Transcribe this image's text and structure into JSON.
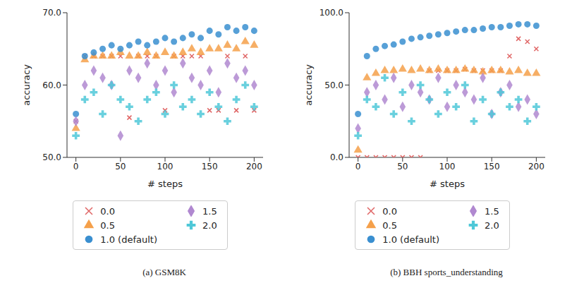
{
  "chart_data": [
    {
      "type": "scatter",
      "title": "(a) GSM8K",
      "xlabel": "# steps",
      "ylabel": "accuracy",
      "x": [
        0,
        10,
        20,
        30,
        40,
        50,
        60,
        70,
        80,
        90,
        100,
        110,
        120,
        130,
        140,
        150,
        160,
        170,
        180,
        190,
        200
      ],
      "xlim": [
        -10,
        210
      ],
      "xticks": [
        0,
        50,
        100,
        150,
        200
      ],
      "ylim": [
        50,
        70
      ],
      "yticks": [
        {
          "value": 50,
          "label": "50.0"
        },
        {
          "value": 60,
          "label": "60.0"
        },
        {
          "value": 70,
          "label": "70.0"
        }
      ],
      "series": [
        {
          "name": "0.0",
          "color": "#e06666",
          "marker": "x",
          "values": [
            55,
            64,
            64,
            64,
            64,
            64,
            55.5,
            64,
            64,
            64,
            56.5,
            64,
            64,
            64,
            64,
            56.5,
            56.5,
            64,
            56.5,
            64,
            56.5
          ]
        },
        {
          "name": "0.5",
          "color": "#f5a04a",
          "marker": "triangle",
          "values": [
            54,
            63.5,
            64,
            64,
            64,
            64.5,
            64,
            64,
            64.5,
            64,
            64.5,
            64,
            64.5,
            65,
            64.5,
            65,
            65,
            65.5,
            65,
            66,
            65.5
          ]
        },
        {
          "name": "1.0 (default)",
          "color": "#3a8fd0",
          "marker": "circle",
          "values": [
            56,
            64,
            64.5,
            65,
            65.5,
            65,
            65.5,
            66,
            65.5,
            66,
            66.5,
            66,
            66.5,
            67,
            66.5,
            67.5,
            67,
            68,
            67.5,
            68,
            67.5
          ]
        },
        {
          "name": "1.5",
          "color": "#b088d0",
          "marker": "diamond",
          "values": [
            55,
            60,
            62,
            61,
            60,
            53,
            62,
            61,
            63,
            60,
            62,
            59,
            63,
            61,
            60,
            62,
            59,
            63,
            61,
            62,
            60
          ]
        },
        {
          "name": "2.0",
          "color": "#4fc8d8",
          "marker": "plus",
          "values": [
            53,
            58,
            59,
            56,
            60,
            58,
            57,
            55,
            58,
            59,
            56,
            60,
            57,
            58,
            56,
            59,
            57,
            55,
            58,
            60,
            57
          ]
        }
      ]
    },
    {
      "type": "scatter",
      "title": "(b) BBH sports_understanding",
      "xlabel": "# steps",
      "ylabel": "accuracy",
      "x": [
        0,
        10,
        20,
        30,
        40,
        50,
        60,
        70,
        80,
        90,
        100,
        110,
        120,
        130,
        140,
        150,
        160,
        170,
        180,
        190,
        200
      ],
      "xlim": [
        -10,
        210
      ],
      "xticks": [
        0,
        50,
        100,
        150,
        200
      ],
      "ylim": [
        0,
        100
      ],
      "yticks": [
        {
          "value": 0,
          "label": "0.0"
        },
        {
          "value": 50,
          "label": "50.0"
        },
        {
          "value": 100,
          "label": "100.0"
        }
      ],
      "series": [
        {
          "name": "0.0",
          "color": "#e06666",
          "marker": "x",
          "values": [
            0,
            0,
            0,
            0,
            0,
            0,
            0,
            0,
            60,
            60,
            60,
            60,
            61,
            60,
            60,
            60,
            60,
            70,
            82,
            80,
            75
          ]
        },
        {
          "name": "0.5",
          "color": "#f5a04a",
          "marker": "triangle",
          "values": [
            5,
            55,
            58,
            60,
            60,
            61,
            60,
            61,
            60,
            61,
            60,
            60,
            61,
            60,
            59,
            60,
            60,
            59,
            60,
            58,
            58
          ]
        },
        {
          "name": "1.0 (default)",
          "color": "#3a8fd0",
          "marker": "circle",
          "values": [
            30,
            70,
            75,
            77,
            78,
            80,
            82,
            83,
            84,
            85,
            86,
            87,
            88,
            88,
            89,
            90,
            90,
            91,
            92,
            92,
            91
          ]
        },
        {
          "name": "1.5",
          "color": "#b088d0",
          "marker": "diamond",
          "values": [
            20,
            45,
            50,
            40,
            55,
            35,
            50,
            45,
            40,
            55,
            35,
            50,
            45,
            40,
            55,
            30,
            45,
            50,
            35,
            40,
            30
          ]
        },
        {
          "name": "2.0",
          "color": "#4fc8d8",
          "marker": "plus",
          "values": [
            15,
            40,
            35,
            55,
            30,
            45,
            25,
            50,
            40,
            30,
            45,
            35,
            50,
            25,
            40,
            30,
            45,
            35,
            40,
            25,
            35
          ]
        }
      ]
    }
  ]
}
